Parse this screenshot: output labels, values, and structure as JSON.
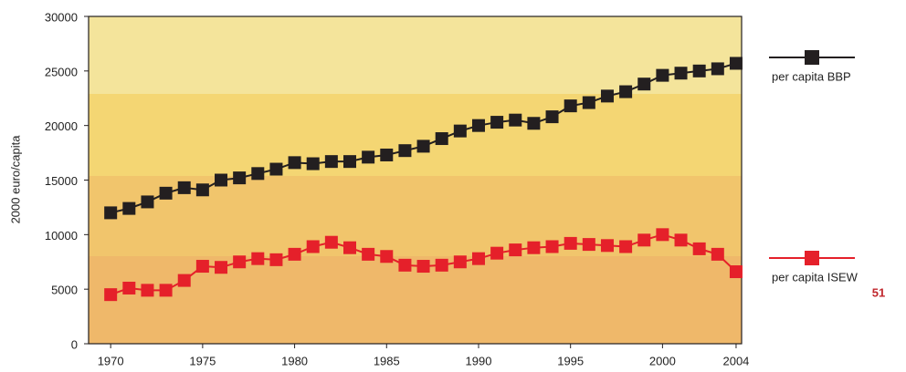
{
  "chart_data": {
    "type": "line",
    "y_label": "2000 euro/capita",
    "x": [
      1970,
      1971,
      1972,
      1973,
      1974,
      1975,
      1976,
      1977,
      1978,
      1979,
      1980,
      1981,
      1982,
      1983,
      1984,
      1985,
      1986,
      1987,
      1988,
      1989,
      1990,
      1991,
      1992,
      1993,
      1994,
      1995,
      1996,
      1997,
      1998,
      1999,
      2000,
      2001,
      2002,
      2003,
      2004
    ],
    "series": [
      {
        "name": "per capita BBP",
        "color": "#231f20",
        "values": [
          12000,
          12400,
          13000,
          13800,
          14300,
          14100,
          15000,
          15200,
          15600,
          16000,
          16600,
          16500,
          16700,
          16700,
          17100,
          17300,
          17700,
          18100,
          18800,
          19500,
          20000,
          20300,
          20500,
          20200,
          20800,
          21800,
          22100,
          22700,
          23100,
          23800,
          24600,
          24800,
          25000,
          25200,
          25700
        ]
      },
      {
        "name": "per capita ISEW",
        "color": "#e5202a",
        "values": [
          4500,
          5100,
          4900,
          4900,
          5800,
          7100,
          7000,
          7500,
          7800,
          7700,
          8200,
          8900,
          9300,
          8800,
          8200,
          8000,
          7200,
          7100,
          7200,
          7500,
          7800,
          8300,
          8600,
          8800,
          8900,
          9200,
          9100,
          9000,
          8900,
          9500,
          10000,
          9500,
          8700,
          8200,
          6600
        ]
      }
    ],
    "xlim": [
      1968.8,
      2004.3
    ],
    "xticks": [
      1970,
      1975,
      1980,
      1985,
      1990,
      1995,
      2000,
      2004
    ],
    "ylim": [
      0,
      30000
    ],
    "yticks": [
      0,
      5000,
      10000,
      15000,
      20000,
      25000,
      30000
    ]
  },
  "page_number": "51"
}
